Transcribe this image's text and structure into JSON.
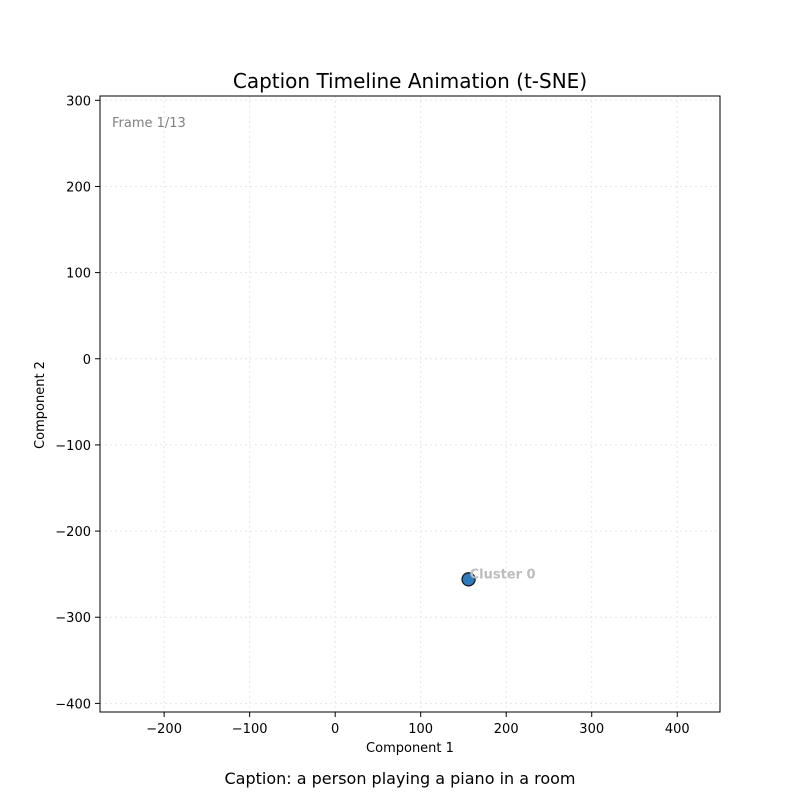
{
  "chart_data": {
    "type": "scatter",
    "title": "Caption Timeline Animation (t-SNE)",
    "xlabel": "Component 1",
    "ylabel": "Component 2",
    "xlim": [
      -275,
      450
    ],
    "ylim": [
      -410,
      305
    ],
    "xticks": [
      -200,
      -100,
      0,
      100,
      200,
      300,
      400
    ],
    "yticks": [
      300,
      200,
      100,
      0,
      -100,
      -200,
      -300,
      -400
    ],
    "grid": true,
    "frame_text": "Frame 1/13",
    "points": [
      {
        "x": 156,
        "y": -256,
        "label": "Cluster 0",
        "color": "#2e7bbf"
      }
    ],
    "caption": "Caption: a person playing a piano in a room"
  }
}
